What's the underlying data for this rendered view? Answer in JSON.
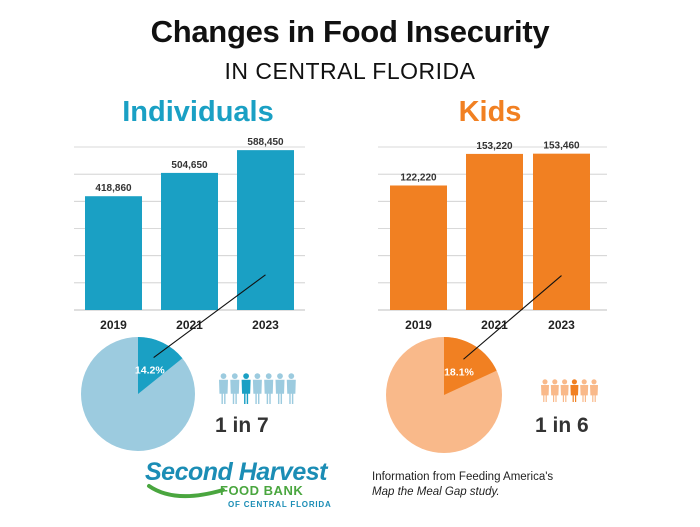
{
  "header": {
    "title": "Changes in Food Insecurity",
    "subtitle": "IN CENTRAL FLORIDA"
  },
  "colors": {
    "individuals": "#1aa0c4",
    "individuals_light": "#9ccbdf",
    "kids": "#f18022",
    "kids_light": "#f9b98a",
    "grid": "#cccccc",
    "text": "#222222"
  },
  "chart_data": [
    {
      "type": "bar",
      "title": "Individuals",
      "categories": [
        "2019",
        "2021",
        "2023"
      ],
      "values": [
        418860,
        504650,
        588450
      ],
      "value_labels": [
        "418,860",
        "504,650",
        "588,450"
      ],
      "ylim": [
        0,
        600000
      ],
      "grid": true,
      "pie": {
        "type": "pie",
        "slice_percent": 14.2,
        "slice_label": "14.2%"
      },
      "ratio": "1 in 7",
      "icon": "person-icon",
      "people_total": 7,
      "people_highlighted": 1
    },
    {
      "type": "bar",
      "title": "Kids",
      "categories": [
        "2019",
        "2021",
        "2023"
      ],
      "values": [
        122220,
        153220,
        153460
      ],
      "value_labels": [
        "122,220",
        "153,220",
        "153,460"
      ],
      "ylim": [
        0,
        160000
      ],
      "grid": true,
      "pie": {
        "type": "pie",
        "slice_percent": 18.1,
        "slice_label": "18.1%"
      },
      "ratio": "1 in 6",
      "icon": "child-icon",
      "people_total": 6,
      "people_highlighted": 1
    }
  ],
  "logo": {
    "line1": "Second Harvest",
    "line2": "FOOD BANK",
    "line3": "OF CENTRAL FLORIDA"
  },
  "source": {
    "line1": "Information from Feeding America's",
    "line2": "Map the Meal Gap study."
  }
}
